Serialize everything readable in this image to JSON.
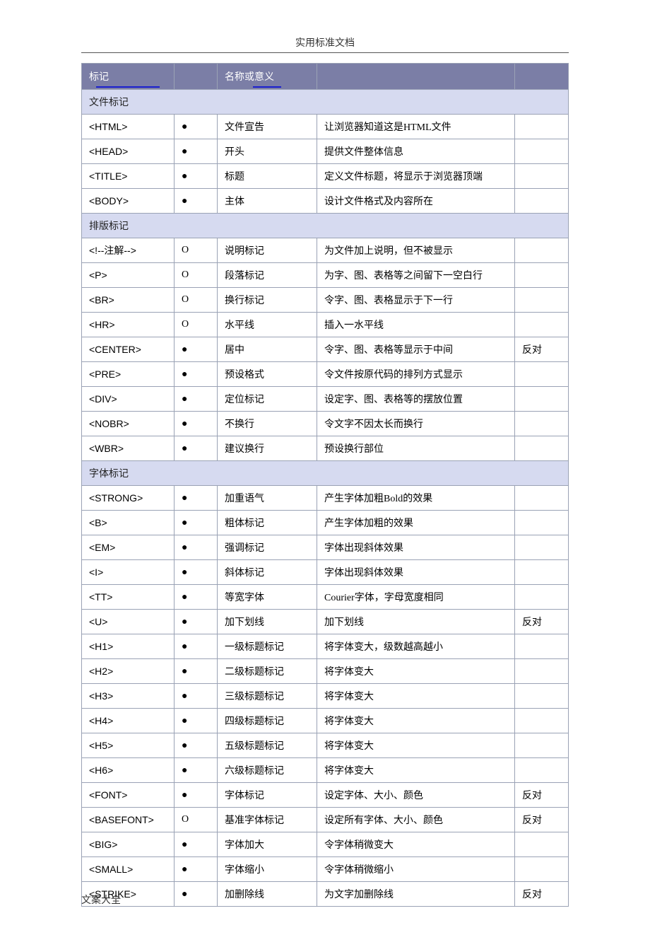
{
  "document": {
    "title": "实用标准文档",
    "footer": "文案大全"
  },
  "table": {
    "colors": {
      "header_bg": "#7b7ea6",
      "header_text": "#ffffff",
      "section_bg": "#d6daf0",
      "border": "#9aa2b5",
      "underline": "#1a1fcf"
    },
    "columns": {
      "tag": "标记",
      "type": "",
      "name": "名称或意义",
      "desc": "",
      "status": ""
    },
    "bullet_glyph": "●",
    "open_glyph": "O",
    "sections": [
      {
        "title": "文件标记",
        "rows": [
          {
            "tag": "<HTML>",
            "type": "bullet",
            "name": "文件宣告",
            "desc": "让浏览器知道这是HTML文件",
            "status": ""
          },
          {
            "tag": "<HEAD>",
            "type": "bullet",
            "name": "开头",
            "desc": "提供文件整体信息",
            "status": ""
          },
          {
            "tag": "<TITLE>",
            "type": "bullet",
            "name": "标题",
            "desc": "定义文件标题，将显示于浏览器顶端",
            "status": ""
          },
          {
            "tag": "<BODY>",
            "type": "bullet",
            "name": "主体",
            "desc": "设计文件格式及内容所在",
            "status": ""
          }
        ]
      },
      {
        "title": "排版标记",
        "rows": [
          {
            "tag": "<!--注解-->",
            "type": "open",
            "name": "说明标记",
            "desc": "为文件加上说明，但不被显示",
            "status": ""
          },
          {
            "tag": "<P>",
            "type": "open",
            "name": "段落标记",
            "desc": "为字、图、表格等之间留下一空白行",
            "status": ""
          },
          {
            "tag": "<BR>",
            "type": "open",
            "name": "换行标记",
            "desc": "令字、图、表格显示于下一行",
            "status": ""
          },
          {
            "tag": "<HR>",
            "type": "open",
            "name": "水平线",
            "desc": "插入一水平线",
            "status": ""
          },
          {
            "tag": "<CENTER>",
            "type": "bullet",
            "name": "居中",
            "desc": "令字、图、表格等显示于中间",
            "status": "反对"
          },
          {
            "tag": "<PRE>",
            "type": "bullet",
            "name": "预设格式",
            "desc": "令文件按原代码的排列方式显示",
            "status": ""
          },
          {
            "tag": "<DIV>",
            "type": "bullet",
            "name": "定位标记",
            "desc": "设定字、图、表格等的摆放位置",
            "status": ""
          },
          {
            "tag": "<NOBR>",
            "type": "bullet",
            "name": "不换行",
            "desc": "令文字不因太长而换行",
            "status": ""
          },
          {
            "tag": "<WBR>",
            "type": "bullet",
            "name": "建议换行",
            "desc": "预设换行部位",
            "status": ""
          }
        ]
      },
      {
        "title": "字体标记",
        "rows": [
          {
            "tag": "<STRONG>",
            "type": "bullet",
            "name": "加重语气",
            "desc": "产生字体加粗Bold的效果",
            "status": ""
          },
          {
            "tag": "<B>",
            "type": "bullet",
            "name": "粗体标记",
            "desc": "产生字体加粗的效果",
            "status": ""
          },
          {
            "tag": "<EM>",
            "type": "bullet",
            "name": "强调标记",
            "desc": "字体出现斜体效果",
            "status": ""
          },
          {
            "tag": "<I>",
            "type": "bullet",
            "name": "斜体标记",
            "desc": "字体出现斜体效果",
            "status": ""
          },
          {
            "tag": "<TT>",
            "type": "bullet",
            "name": "等宽字体",
            "desc": "Courier字体，字母宽度相同",
            "status": ""
          },
          {
            "tag": "<U>",
            "type": "bullet",
            "name": "加下划线",
            "desc": "加下划线",
            "status": "反对"
          },
          {
            "tag": "<H1>",
            "type": "bullet",
            "name": "一级标题标记",
            "desc": "将字体变大，级数越高越小",
            "status": ""
          },
          {
            "tag": "<H2>",
            "type": "bullet",
            "name": "二级标题标记",
            "desc": "将字体变大",
            "status": ""
          },
          {
            "tag": "<H3>",
            "type": "bullet",
            "name": "三级标题标记",
            "desc": "将字体变大",
            "status": ""
          },
          {
            "tag": "<H4>",
            "type": "bullet",
            "name": "四级标题标记",
            "desc": "将字体变大",
            "status": ""
          },
          {
            "tag": "<H5>",
            "type": "bullet",
            "name": "五级标题标记",
            "desc": "将字体变大",
            "status": ""
          },
          {
            "tag": "<H6>",
            "type": "bullet",
            "name": "六级标题标记",
            "desc": "将字体变大",
            "status": ""
          },
          {
            "tag": "<FONT>",
            "type": "bullet",
            "name": "字体标记",
            "desc": "设定字体、大小、颜色",
            "status": "反对"
          },
          {
            "tag": "<BASEFONT>",
            "type": "open",
            "name": "基准字体标记",
            "desc": "设定所有字体、大小、颜色",
            "status": "反对"
          },
          {
            "tag": "<BIG>",
            "type": "bullet",
            "name": "字体加大",
            "desc": "令字体稍微变大",
            "status": ""
          },
          {
            "tag": "<SMALL>",
            "type": "bullet",
            "name": "字体缩小",
            "desc": "令字体稍微缩小",
            "status": ""
          },
          {
            "tag": "<STRIKE>",
            "type": "bullet",
            "name": "加删除线",
            "desc": "为文字加删除线",
            "status": "反对"
          }
        ]
      }
    ]
  }
}
